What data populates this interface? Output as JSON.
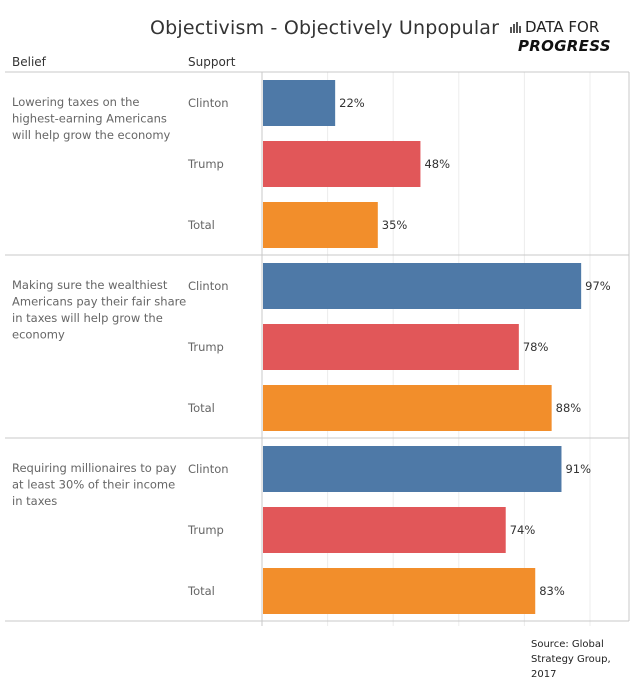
{
  "header": {
    "title": "Objectivism - Objectively Unpopular",
    "logo_line1": "DATA FOR",
    "logo_line2": "PROGRESS",
    "logo_icon": "bar-chart-icon"
  },
  "columns": {
    "belief": "Belief",
    "support": "Support"
  },
  "source": {
    "line1": "Source: Global",
    "line2": "Strategy Group, 2017"
  },
  "colors": {
    "Clinton": "#4e79a7",
    "Trump": "#e15759",
    "Total": "#f28e2b"
  },
  "chart_data": {
    "type": "bar",
    "orientation": "horizontal",
    "title": "Objectivism - Objectively Unpopular",
    "xlabel": "",
    "ylabel": "",
    "xlim": [
      0,
      100
    ],
    "grid": true,
    "value_format": "percent",
    "categories": [
      "Lowering taxes on the highest-earning Americans will help grow the economy",
      "Making sure the wealthiest Americans pay their fair share in taxes will help grow the economy",
      "Requiring millionaires to pay at least 30% of their income in taxes"
    ],
    "category_lines": [
      [
        "Lowering taxes on the",
        "highest-earning Americans",
        "will help grow the economy"
      ],
      [
        "Making sure the wealthiest",
        "Americans pay their fair share",
        "in taxes will help grow the",
        "economy"
      ],
      [
        "Requiring millionaires to pay",
        "at least 30% of their income",
        "in taxes"
      ]
    ],
    "series": [
      {
        "name": "Clinton",
        "values": [
          22,
          97,
          91
        ]
      },
      {
        "name": "Trump",
        "values": [
          48,
          78,
          74
        ]
      },
      {
        "name": "Total",
        "values": [
          35,
          88,
          83
        ]
      }
    ],
    "labels": [
      [
        "22%",
        "48%",
        "35%"
      ],
      [
        "97%",
        "78%",
        "88%"
      ],
      [
        "91%",
        "74%",
        "83%"
      ]
    ]
  }
}
